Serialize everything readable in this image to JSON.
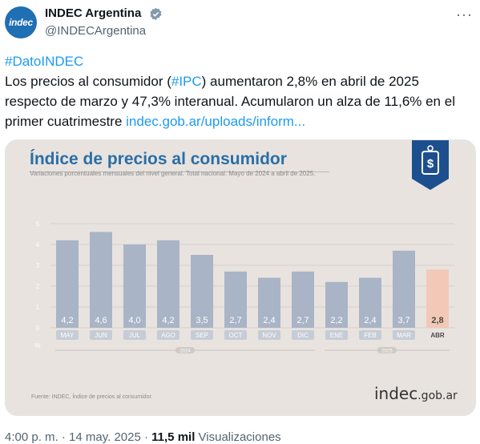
{
  "tweet": {
    "avatar_text": "indec",
    "name": "INDEC Argentina",
    "handle": "@INDECArgentina",
    "more_label": "···",
    "hashtag": "#DatoINDEC",
    "line1_a": "Los precios al consumidor (",
    "ipc_tag": "#IPC",
    "line1_b": ") aumentaron 2,8% en abril de 2025",
    "line2": "respecto de marzo y 47,3% interanual. Acumularon un alza de 11,6% en el",
    "line3_a": "primer cuatrimestre ",
    "link": "indec.gob.ar/uploads/inform...",
    "time": "4:00 p. m. · 14 may. 2025 · ",
    "views_count": "11,5 mil",
    "views_label": " Visualizaciones",
    "accent": "#1d9bf0"
  },
  "card": {
    "title": "Índice de precios al consumidor",
    "subtitle": "Variaciones porcentuales mensuales del nivel general. Total nacional. Mayo de 2024 a abril de 2025.",
    "source": "Fuente: INDEC, Índice de precios al consumidor.",
    "logo_main": "indec",
    "logo_domain": ".gob.ar",
    "badge_icon": "dollar-price-tag-icon"
  },
  "chart_data": {
    "type": "bar",
    "categories": [
      "MAY",
      "JUN",
      "JUL",
      "AGO",
      "SEP",
      "OCT",
      "NOV",
      "DIC",
      "ENE",
      "FEB",
      "MAR",
      "ABR"
    ],
    "values": [
      4.2,
      4.6,
      4.0,
      4.2,
      3.5,
      2.7,
      2.4,
      2.7,
      2.2,
      2.4,
      3.7,
      2.8
    ],
    "value_labels": [
      "4,2",
      "4,6",
      "4,0",
      "4,2",
      "3,5",
      "2,7",
      "2,4",
      "2,7",
      "2,2",
      "2,4",
      "3,7",
      "2,8"
    ],
    "y_ticks": [
      "0",
      "1",
      "2",
      "3",
      "4",
      "5"
    ],
    "ylim": [
      0,
      5
    ],
    "ylabel": "%",
    "year_labels": [
      "2024",
      "2025"
    ],
    "highlight_index": 11,
    "bar_color": "#a9b4c6",
    "highlight_color": "#f2c9b6",
    "grid": true
  }
}
